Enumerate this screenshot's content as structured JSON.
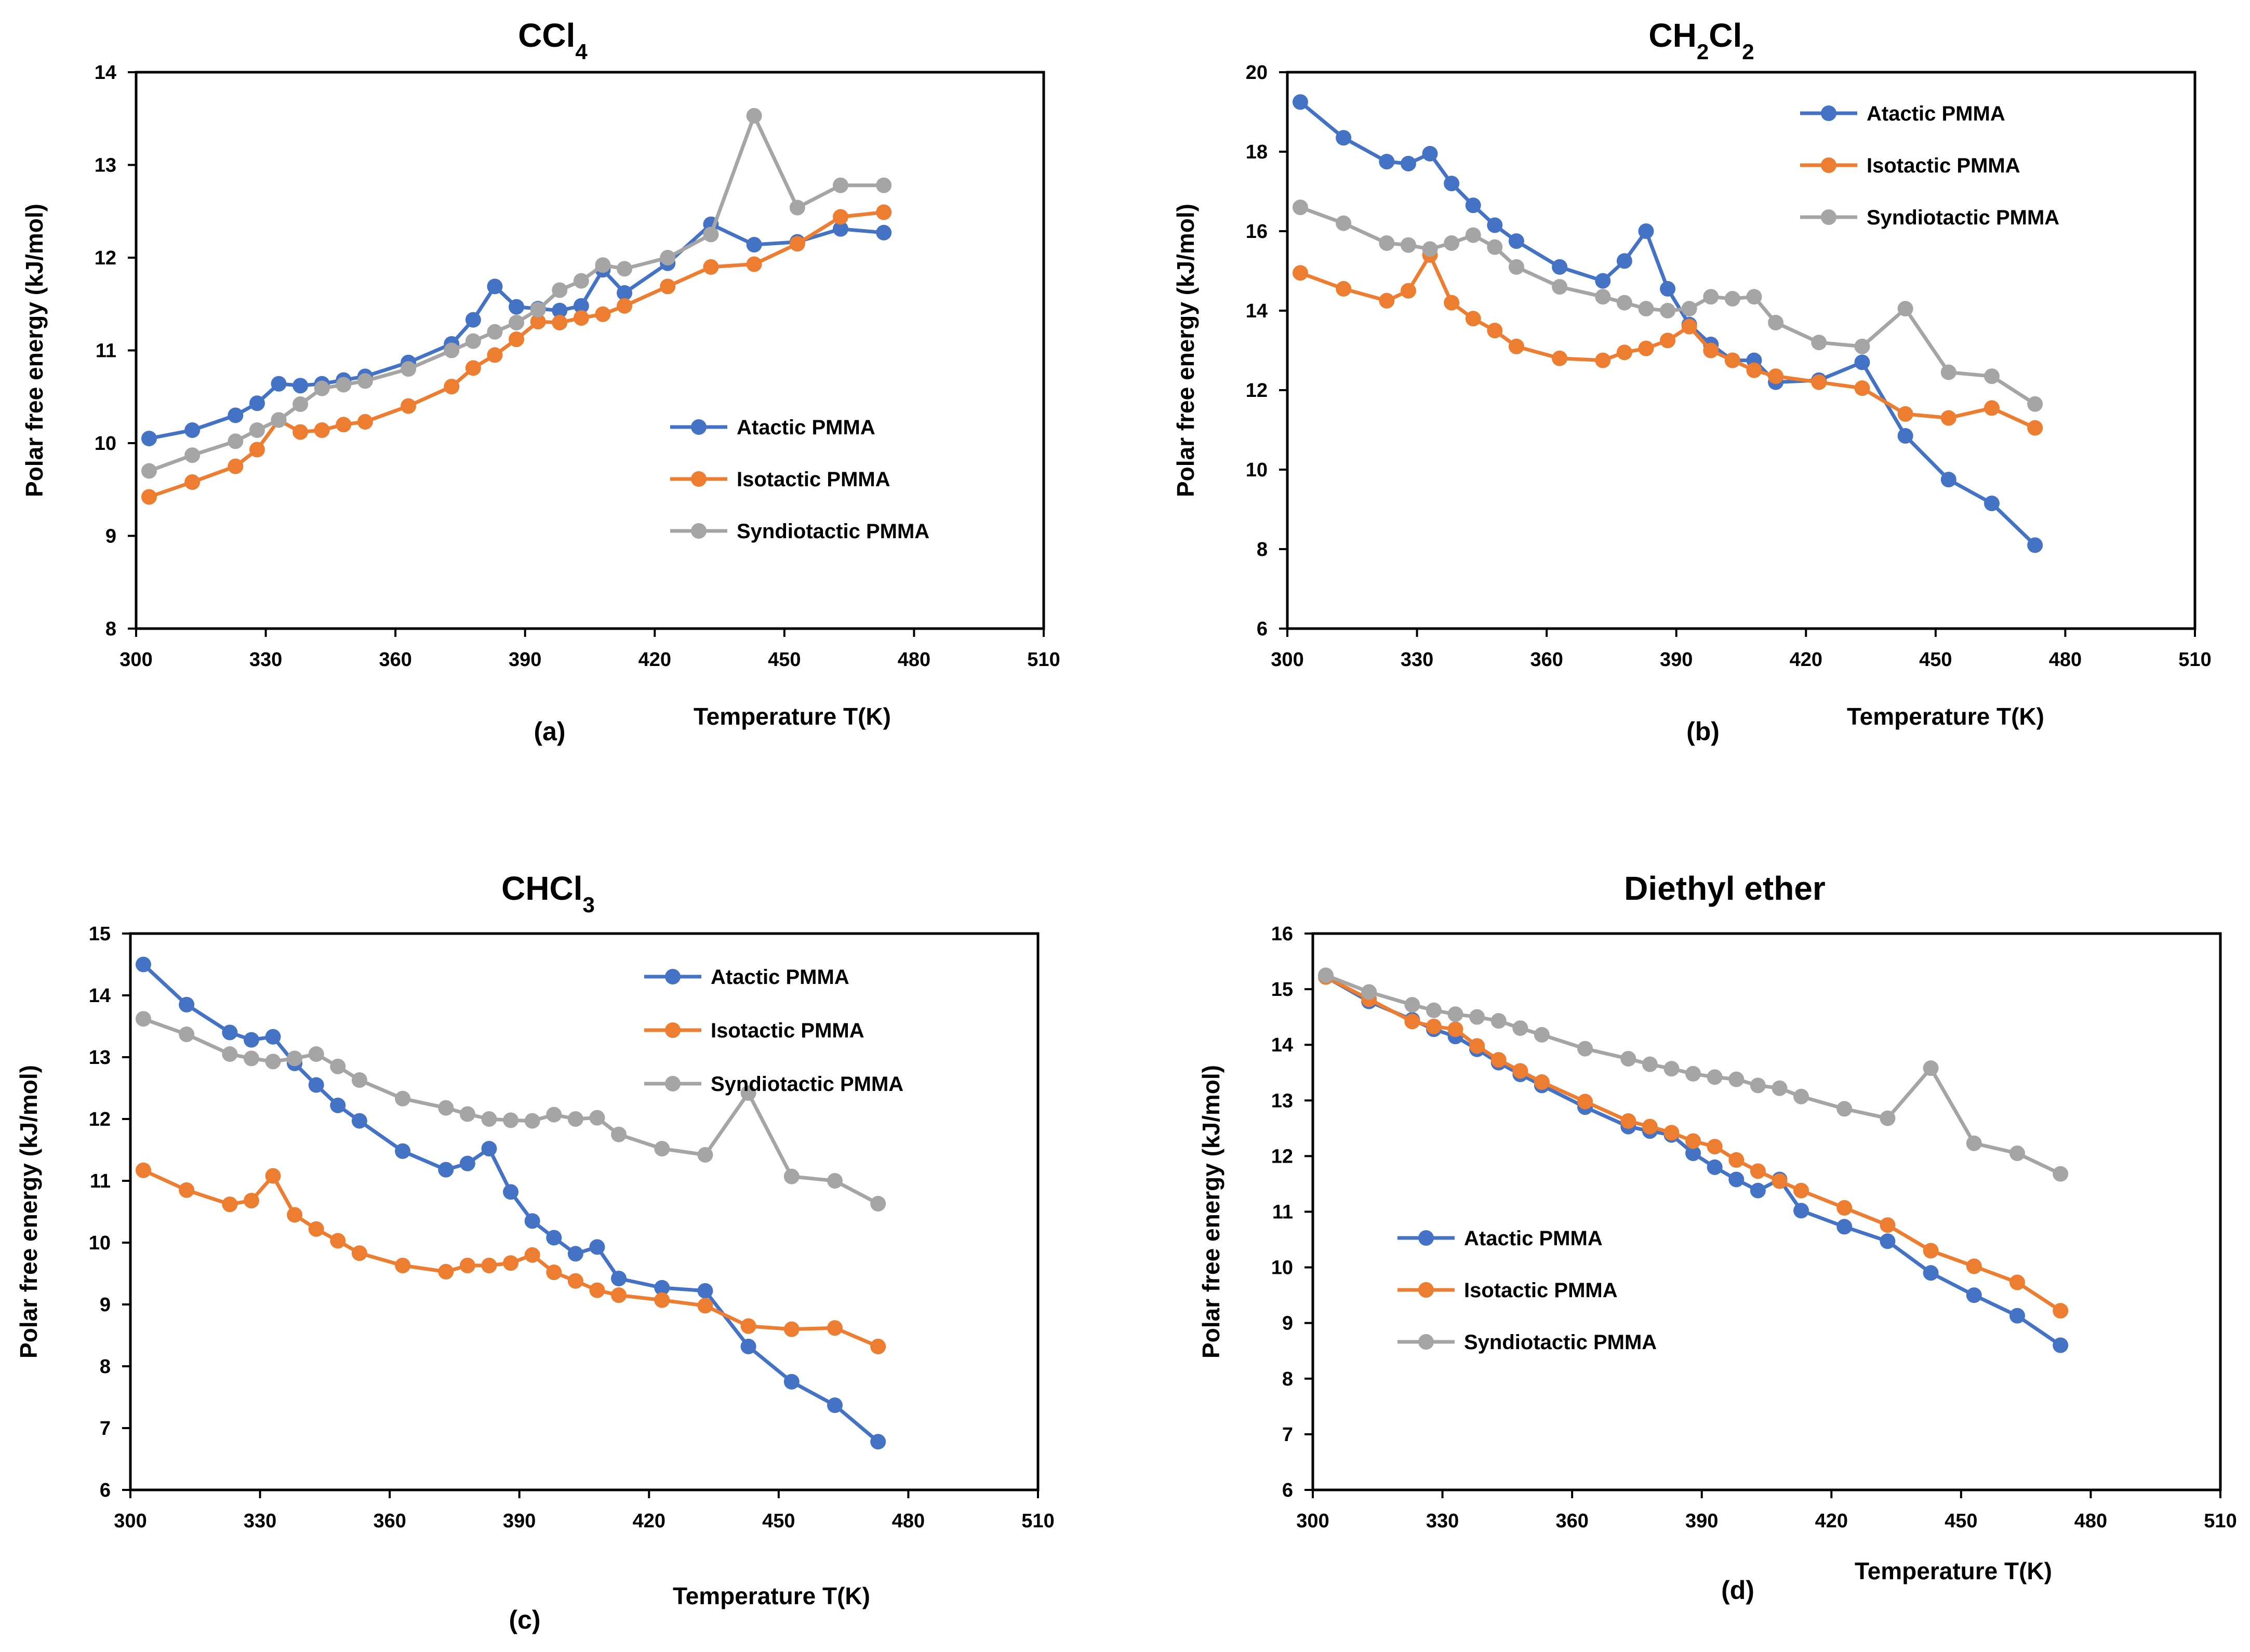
{
  "chart_data": [
    {
      "type": "line",
      "panel": "(a)",
      "title": "CCl",
      "title_sub": "4",
      "xlabel": "Temperature T(K)",
      "ylabel": "Polar free energy (kJ/mol)",
      "xlim": [
        300,
        510
      ],
      "xticks": [
        300,
        330,
        360,
        390,
        420,
        450,
        480,
        510
      ],
      "ylim": [
        8,
        14
      ],
      "yticks": [
        8,
        9,
        10,
        11,
        12,
        13,
        14
      ],
      "legend_position": "bottom-right",
      "series": [
        {
          "name": "Atactic PMMA",
          "color": "#4472C4",
          "x": [
            303,
            313,
            323,
            328,
            333,
            338,
            343,
            348,
            353,
            363,
            373,
            378,
            383,
            388,
            393,
            398,
            403,
            408,
            413,
            423,
            433,
            443,
            453,
            463,
            473
          ],
          "y": [
            10.05,
            10.14,
            10.3,
            10.43,
            10.64,
            10.62,
            10.64,
            10.68,
            10.72,
            10.87,
            11.07,
            11.33,
            11.69,
            11.47,
            11.45,
            11.43,
            11.48,
            11.87,
            11.62,
            11.94,
            12.36,
            12.14,
            12.17,
            12.31,
            12.27
          ]
        },
        {
          "name": "Isotactic PMMA",
          "color": "#ED7D31",
          "x": [
            303,
            313,
            323,
            328,
            333,
            338,
            343,
            348,
            353,
            363,
            373,
            378,
            383,
            388,
            393,
            398,
            403,
            408,
            413,
            423,
            433,
            443,
            453,
            463,
            473
          ],
          "y": [
            9.42,
            9.58,
            9.75,
            9.93,
            10.25,
            10.12,
            10.14,
            10.2,
            10.23,
            10.4,
            10.61,
            10.81,
            10.95,
            11.12,
            11.31,
            11.3,
            11.35,
            11.39,
            11.48,
            11.69,
            11.9,
            11.93,
            12.15,
            12.44,
            12.49
          ]
        },
        {
          "name": "Syndiotactic PMMA",
          "color": "#A5A5A5",
          "x": [
            303,
            313,
            323,
            328,
            333,
            338,
            343,
            348,
            353,
            363,
            373,
            378,
            383,
            388,
            393,
            398,
            403,
            408,
            413,
            423,
            433,
            443,
            453,
            463,
            473
          ],
          "y": [
            9.7,
            9.87,
            10.02,
            10.14,
            10.25,
            10.42,
            10.59,
            10.63,
            10.67,
            10.8,
            11.0,
            11.1,
            11.2,
            11.3,
            11.44,
            11.65,
            11.75,
            11.92,
            11.88,
            12.0,
            12.25,
            13.53,
            12.54,
            12.78,
            12.78
          ]
        }
      ]
    },
    {
      "type": "line",
      "panel": "(b)",
      "title": "CH",
      "title_sub": "2",
      "title_mid": "Cl",
      "title_sub2": "2",
      "xlabel": "Temperature T(K)",
      "ylabel": "Polar free energy (kJ/mol)",
      "xlim": [
        300,
        510
      ],
      "xticks": [
        300,
        330,
        360,
        390,
        420,
        450,
        480,
        510
      ],
      "ylim": [
        6,
        20
      ],
      "yticks": [
        6,
        8,
        10,
        12,
        14,
        16,
        18,
        20
      ],
      "legend_position": "top-right",
      "series": [
        {
          "name": "Atactic PMMA",
          "color": "#4472C4",
          "x": [
            303,
            313,
            323,
            328,
            333,
            338,
            343,
            348,
            353,
            363,
            373,
            378,
            383,
            388,
            393,
            398,
            403,
            408,
            413,
            423,
            433,
            443,
            453,
            463,
            473
          ],
          "y": [
            19.25,
            18.35,
            17.75,
            17.7,
            17.95,
            17.2,
            16.65,
            16.15,
            15.75,
            15.1,
            14.75,
            15.25,
            16.0,
            14.55,
            13.65,
            13.15,
            12.75,
            12.75,
            12.2,
            12.25,
            12.7,
            10.85,
            9.75,
            9.15,
            8.1
          ]
        },
        {
          "name": "Isotactic PMMA",
          "color": "#ED7D31",
          "x": [
            303,
            313,
            323,
            328,
            333,
            338,
            343,
            348,
            353,
            363,
            373,
            378,
            383,
            388,
            393,
            398,
            403,
            408,
            413,
            423,
            433,
            443,
            453,
            463,
            473
          ],
          "y": [
            14.95,
            14.55,
            14.25,
            14.5,
            15.4,
            14.2,
            13.8,
            13.5,
            13.1,
            12.8,
            12.75,
            12.95,
            13.05,
            13.25,
            13.6,
            13.0,
            12.75,
            12.5,
            12.35,
            12.2,
            12.05,
            11.4,
            11.3,
            11.55,
            11.05
          ]
        },
        {
          "name": "Syndiotactic PMMA",
          "color": "#A5A5A5",
          "x": [
            303,
            313,
            323,
            328,
            333,
            338,
            343,
            348,
            353,
            363,
            373,
            378,
            383,
            388,
            393,
            398,
            403,
            408,
            413,
            423,
            433,
            443,
            453,
            463,
            473
          ],
          "y": [
            16.6,
            16.2,
            15.7,
            15.65,
            15.55,
            15.7,
            15.9,
            15.6,
            15.1,
            14.6,
            14.35,
            14.2,
            14.05,
            14.0,
            14.05,
            14.35,
            14.3,
            14.35,
            13.7,
            13.2,
            13.1,
            14.05,
            12.45,
            12.35,
            11.65
          ]
        }
      ]
    },
    {
      "type": "line",
      "panel": "(c)",
      "title": "CHCl",
      "title_sub": "3",
      "xlabel": "Temperature T(K)",
      "ylabel": "Polar free energy (kJ/mol)",
      "xlim": [
        300,
        510
      ],
      "xticks": [
        300,
        330,
        360,
        390,
        420,
        450,
        480,
        510
      ],
      "ylim": [
        6,
        15
      ],
      "yticks": [
        6,
        7,
        8,
        9,
        10,
        11,
        12,
        13,
        14,
        15
      ],
      "legend_position": "top-right",
      "series": [
        {
          "name": "Atactic PMMA",
          "color": "#4472C4",
          "x": [
            303,
            313,
            323,
            328,
            333,
            338,
            343,
            348,
            353,
            363,
            373,
            378,
            383,
            388,
            393,
            398,
            403,
            408,
            413,
            423,
            433,
            443,
            453,
            463,
            473
          ],
          "y": [
            14.5,
            13.85,
            13.4,
            13.28,
            13.33,
            12.9,
            12.55,
            12.22,
            11.97,
            11.48,
            11.18,
            11.28,
            11.52,
            10.82,
            10.35,
            10.08,
            9.82,
            9.93,
            9.42,
            9.27,
            9.22,
            8.32,
            7.75,
            7.37,
            6.78
          ]
        },
        {
          "name": "Isotactic PMMA",
          "color": "#ED7D31",
          "x": [
            303,
            313,
            323,
            328,
            333,
            338,
            343,
            348,
            353,
            363,
            373,
            378,
            383,
            388,
            393,
            398,
            403,
            408,
            413,
            423,
            433,
            443,
            453,
            463,
            473
          ],
          "y": [
            11.17,
            10.85,
            10.62,
            10.68,
            11.08,
            10.45,
            10.22,
            10.03,
            9.83,
            9.63,
            9.53,
            9.63,
            9.63,
            9.67,
            9.8,
            9.52,
            9.38,
            9.23,
            9.15,
            9.07,
            8.98,
            8.65,
            8.6,
            8.62,
            8.32
          ]
        },
        {
          "name": "Syndiotactic PMMA",
          "color": "#A5A5A5",
          "x": [
            303,
            313,
            323,
            328,
            333,
            338,
            343,
            348,
            353,
            363,
            373,
            378,
            383,
            388,
            393,
            398,
            403,
            408,
            413,
            423,
            433,
            443,
            453,
            463,
            473
          ],
          "y": [
            13.62,
            13.37,
            13.05,
            12.98,
            12.93,
            12.98,
            13.05,
            12.85,
            12.63,
            12.33,
            12.18,
            12.08,
            12.0,
            11.98,
            11.97,
            12.07,
            12.0,
            12.02,
            11.75,
            11.52,
            11.42,
            12.42,
            11.07,
            11.0,
            10.63
          ]
        }
      ]
    },
    {
      "type": "line",
      "panel": "(d)",
      "title": "Diethyl ether",
      "xlabel": "Temperature T(K)",
      "ylabel": "Polar free energy (kJ/mol)",
      "xlim": [
        300,
        510
      ],
      "xticks": [
        300,
        330,
        360,
        390,
        420,
        450,
        480,
        510
      ],
      "ylim": [
        6,
        16
      ],
      "yticks": [
        6,
        7,
        8,
        9,
        10,
        11,
        12,
        13,
        14,
        15,
        16
      ],
      "legend_position": "bottom-left",
      "series": [
        {
          "name": "Atactic PMMA",
          "color": "#4472C4",
          "x": [
            303,
            313,
            323,
            328,
            333,
            338,
            343,
            348,
            353,
            363,
            373,
            378,
            383,
            388,
            393,
            398,
            403,
            408,
            413,
            423,
            433,
            443,
            453,
            463,
            473
          ],
          "y": [
            15.22,
            14.78,
            14.45,
            14.28,
            14.15,
            13.92,
            13.68,
            13.47,
            13.27,
            12.88,
            12.53,
            12.45,
            12.38,
            12.05,
            11.8,
            11.58,
            11.38,
            11.58,
            11.02,
            10.73,
            10.47,
            9.9,
            9.5,
            9.13,
            8.6
          ]
        },
        {
          "name": "Isotactic PMMA",
          "color": "#ED7D31",
          "x": [
            303,
            313,
            323,
            328,
            333,
            338,
            343,
            348,
            353,
            363,
            373,
            378,
            383,
            388,
            393,
            398,
            403,
            408,
            413,
            423,
            433,
            443,
            453,
            463,
            473
          ],
          "y": [
            15.22,
            14.82,
            14.42,
            14.33,
            14.28,
            13.98,
            13.73,
            13.53,
            13.33,
            12.98,
            12.63,
            12.53,
            12.42,
            12.27,
            12.17,
            11.93,
            11.73,
            11.55,
            11.38,
            11.07,
            10.76,
            10.3,
            10.02,
            9.73,
            9.22
          ]
        },
        {
          "name": "Syndiotactic PMMA",
          "color": "#A5A5A5",
          "x": [
            303,
            313,
            323,
            328,
            333,
            338,
            343,
            348,
            353,
            363,
            373,
            378,
            383,
            388,
            393,
            398,
            403,
            408,
            413,
            423,
            433,
            443,
            453,
            463,
            473
          ],
          "y": [
            15.25,
            14.95,
            14.72,
            14.62,
            14.55,
            14.5,
            14.43,
            14.3,
            14.18,
            13.93,
            13.75,
            13.65,
            13.57,
            13.48,
            13.42,
            13.38,
            13.27,
            13.22,
            13.07,
            12.85,
            12.68,
            13.58,
            12.23,
            12.05,
            11.68
          ]
        }
      ]
    }
  ]
}
